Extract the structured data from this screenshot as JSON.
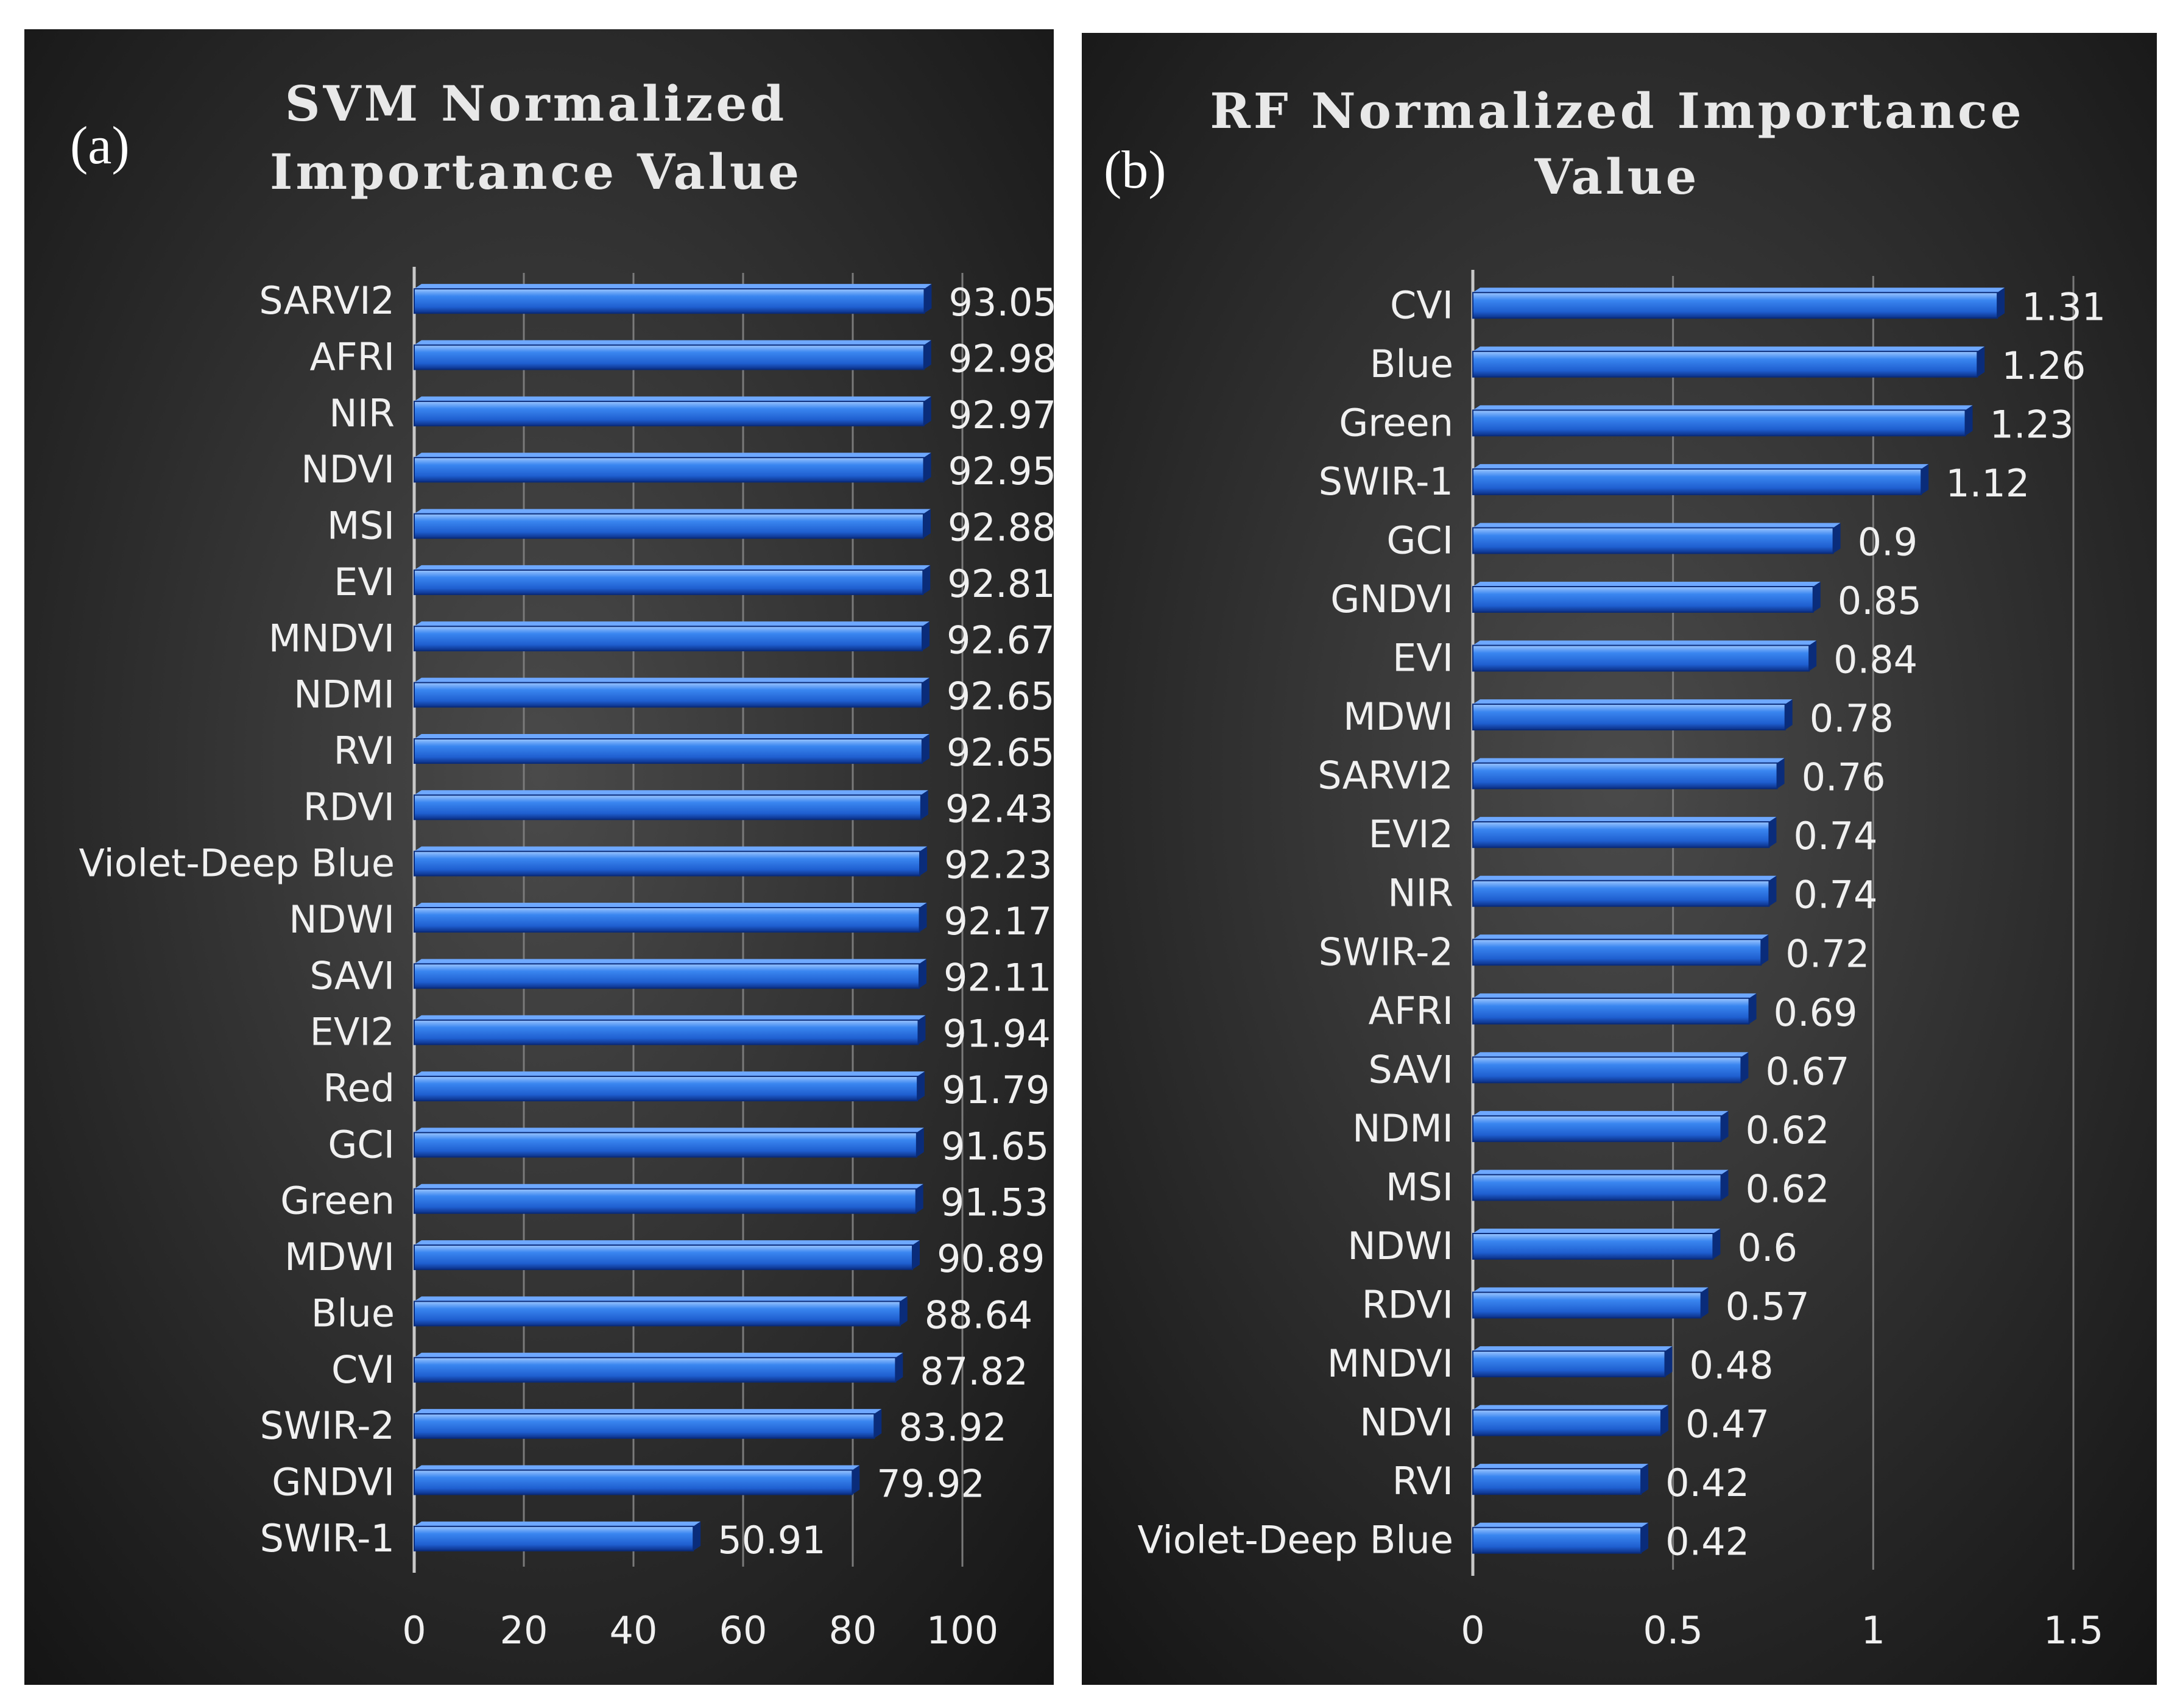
{
  "colors": {
    "bar_face": "#2a6fd8",
    "bar_edge": "#0a2c7a",
    "text": "#f0f0f0",
    "grid": "#7a7a7a",
    "panel_center": "#4a4a4a",
    "panel_edge": "#141414"
  },
  "chart_data": [
    {
      "type": "bar",
      "orientation": "horizontal",
      "panel_letter": "(a)",
      "title": "SVM Normalized Importance Value",
      "title_lines": [
        "SVM Normalized",
        "Importance Value"
      ],
      "categories": [
        "SARVI2",
        "AFRI",
        "NIR",
        "NDVI",
        "MSI",
        "EVI",
        "MNDVI",
        "NDMI",
        "RVI",
        "RDVI",
        "Violet-Deep Blue",
        "NDWI",
        "SAVI",
        "EVI2",
        "Red",
        "GCI",
        "Green",
        "MDWI",
        "Blue",
        "CVI",
        "SWIR-2",
        "GNDVI",
        "SWIR-1"
      ],
      "values": [
        93.05,
        92.98,
        92.97,
        92.95,
        92.88,
        92.81,
        92.67,
        92.65,
        92.65,
        92.43,
        92.23,
        92.17,
        92.11,
        91.94,
        91.79,
        91.65,
        91.53,
        90.89,
        88.64,
        87.82,
        83.92,
        79.92,
        50.91
      ],
      "value_labels": [
        "93.05",
        "92.98",
        "92.97",
        "92.95",
        "92.88",
        "92.81",
        "92.67",
        "92.65",
        "92.65",
        "92.43",
        "92.23",
        "92.17",
        "92.11",
        "91.94",
        "91.79",
        "91.65",
        "91.53",
        "90.89",
        "88.64",
        "87.82",
        "83.92",
        "79.92",
        "50.91"
      ],
      "xlim": [
        0,
        100
      ],
      "xticks": [
        0,
        20,
        40,
        60,
        80,
        100
      ],
      "xtick_labels": [
        "0",
        "20",
        "40",
        "60",
        "80",
        "100"
      ],
      "xlabel": "",
      "ylabel": "",
      "grid": true
    },
    {
      "type": "bar",
      "orientation": "horizontal",
      "panel_letter": "(b)",
      "title": "RF Normalized Importance Value",
      "title_lines": [
        "RF Normalized Importance",
        "Value"
      ],
      "categories": [
        "CVI",
        "Blue",
        "Green",
        "SWIR-1",
        "GCI",
        "GNDVI",
        "EVI",
        "MDWI",
        "SARVI2",
        "EVI2",
        "NIR",
        "SWIR-2",
        "AFRI",
        "SAVI",
        "NDMI",
        "MSI",
        "NDWI",
        "RDVI",
        "MNDVI",
        "NDVI",
        "RVI",
        "Violet-Deep Blue"
      ],
      "values": [
        1.31,
        1.26,
        1.23,
        1.12,
        0.9,
        0.85,
        0.84,
        0.78,
        0.76,
        0.74,
        0.74,
        0.72,
        0.69,
        0.67,
        0.62,
        0.62,
        0.6,
        0.57,
        0.48,
        0.47,
        0.42,
        0.42
      ],
      "value_labels": [
        "1.31",
        "1.26",
        "1.23",
        "1.12",
        "0.9",
        "0.85",
        "0.84",
        "0.78",
        "0.76",
        "0.74",
        "0.74",
        "0.72",
        "0.69",
        "0.67",
        "0.62",
        "0.62",
        "0.6",
        "0.57",
        "0.48",
        "0.47",
        "0.42",
        "0.42"
      ],
      "xlim": [
        0,
        1.5
      ],
      "xticks": [
        0,
        0.5,
        1,
        1.5
      ],
      "xtick_labels": [
        "0",
        "0.5",
        "1",
        "1.5"
      ],
      "xlabel": "",
      "ylabel": "",
      "grid": true
    }
  ]
}
